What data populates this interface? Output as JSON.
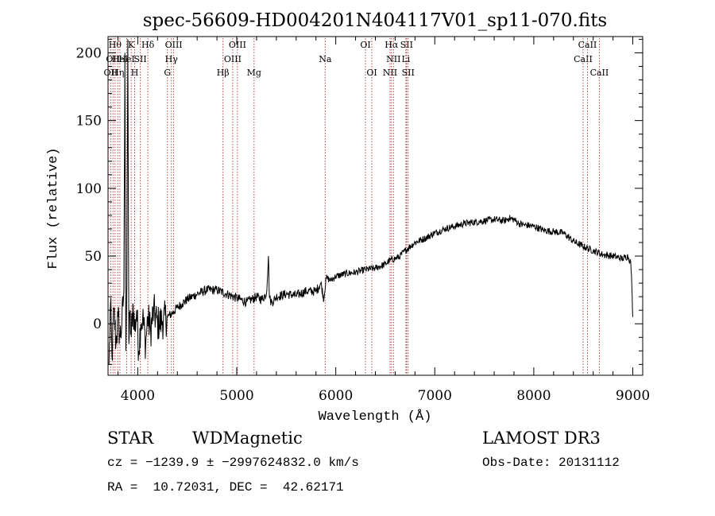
{
  "chart_data": {
    "type": "line",
    "title": "spec-56609-HD004201N404117V01_sp11-070.fits",
    "xlabel": "Wavelength (Å)",
    "ylabel": "Flux (relative)",
    "xlim": [
      3700,
      9100
    ],
    "ylim": [
      -38,
      212
    ],
    "xticks": [
      4000,
      5000,
      6000,
      7000,
      8000,
      9000
    ],
    "xtick_labels": [
      "4000",
      "5000",
      "6000",
      "7000",
      "8000",
      "9000"
    ],
    "yticks": [
      0,
      50,
      100,
      150,
      200
    ],
    "ytick_labels": [
      "0",
      "50",
      "100",
      "150",
      "200"
    ],
    "grid": false,
    "line_color": "#000000",
    "marker_color": "#b03030",
    "series": [
      {
        "name": "flux",
        "x": [
          3710,
          3725,
          3740,
          3760,
          3780,
          3800,
          3820,
          3840,
          3860,
          3870,
          3880,
          3890,
          3900,
          3910,
          3920,
          3935,
          3950,
          3970,
          3990,
          4010,
          4030,
          4050,
          4080,
          4100,
          4130,
          4160,
          4200,
          4250,
          4300,
          4350,
          4400,
          4450,
          4500,
          4600,
          4700,
          4800,
          4900,
          5000,
          5100,
          5200,
          5250,
          5300,
          5320,
          5330,
          5340,
          5360,
          5400,
          5500,
          5600,
          5700,
          5800,
          5850,
          5880,
          5900,
          5950,
          6000,
          6100,
          6200,
          6300,
          6400,
          6500,
          6550,
          6600,
          6650,
          6700,
          6800,
          6900,
          7000,
          7100,
          7200,
          7300,
          7400,
          7500,
          7600,
          7700,
          7750,
          7800,
          7850,
          7900,
          8000,
          8100,
          8200,
          8300,
          8400,
          8500,
          8600,
          8700,
          8800,
          8900,
          8950,
          8980,
          8990,
          9000
        ],
        "values": [
          -30,
          15,
          -25,
          10,
          -15,
          5,
          -10,
          0,
          25,
          200,
          -20,
          30,
          210,
          -15,
          5,
          -10,
          15,
          -5,
          10,
          -20,
          0,
          5,
          -15,
          5,
          -5,
          10,
          0,
          2,
          5,
          8,
          12,
          15,
          18,
          22,
          25,
          25,
          22,
          19,
          16,
          20,
          18,
          22,
          50,
          20,
          17,
          16,
          20,
          22,
          21,
          24,
          24,
          30,
          18,
          34,
          32,
          35,
          37,
          38,
          40,
          41,
          44,
          47,
          48,
          50,
          54,
          60,
          63,
          67,
          70,
          72,
          74,
          75,
          76,
          77,
          76,
          78,
          77,
          74,
          73,
          72,
          69,
          68,
          67,
          61,
          57,
          54,
          51,
          50,
          48,
          50,
          45,
          28,
          5
        ]
      }
    ],
    "line_markers": [
      {
        "wavelength": 3727,
        "label": "OII",
        "row": 2
      },
      {
        "wavelength": 3750,
        "label": "OII",
        "row": 1
      },
      {
        "wavelength": 3771,
        "label": "Hθ",
        "row": 0
      },
      {
        "wavelength": 3798,
        "label": "Hη",
        "row": 2
      },
      {
        "wavelength": 3820,
        "label": "HeI",
        "row": 1
      },
      {
        "wavelength": 3889,
        "label": "HeI",
        "row": 1
      },
      {
        "wavelength": 3934,
        "label": "K",
        "row": 0
      },
      {
        "wavelength": 3969,
        "label": "H",
        "row": 2
      },
      {
        "wavelength": 4026,
        "label": "SII",
        "row": 1
      },
      {
        "wavelength": 4102,
        "label": "Hδ",
        "row": 0
      },
      {
        "wavelength": 4300,
        "label": "G",
        "row": 2
      },
      {
        "wavelength": 4340,
        "label": "Hγ",
        "row": 1
      },
      {
        "wavelength": 4363,
        "label": "OIII",
        "row": 0
      },
      {
        "wavelength": 4861,
        "label": "Hβ",
        "row": 2
      },
      {
        "wavelength": 4959,
        "label": "OIII",
        "row": 1
      },
      {
        "wavelength": 5007,
        "label": "OIII",
        "row": 0
      },
      {
        "wavelength": 5175,
        "label": "Mg",
        "row": 2
      },
      {
        "wavelength": 5893,
        "label": "Na",
        "row": 1
      },
      {
        "wavelength": 6300,
        "label": "OI",
        "row": 0
      },
      {
        "wavelength": 6364,
        "label": "OI",
        "row": 2
      },
      {
        "wavelength": 6548,
        "label": "NII",
        "row": 2
      },
      {
        "wavelength": 6563,
        "label": "Hα",
        "row": 0
      },
      {
        "wavelength": 6583,
        "label": "NII",
        "row": 1
      },
      {
        "wavelength": 6708,
        "label": "Li",
        "row": 1
      },
      {
        "wavelength": 6716,
        "label": "SII",
        "row": 0
      },
      {
        "wavelength": 6731,
        "label": "SII",
        "row": 2
      },
      {
        "wavelength": 8498,
        "label": "CaII",
        "row": 1
      },
      {
        "wavelength": 8542,
        "label": "CaII",
        "row": 0
      },
      {
        "wavelength": 8662,
        "label": "CaII",
        "row": 2
      }
    ]
  },
  "info": {
    "object_class": "STAR",
    "subclass": "WDMagnetic",
    "survey": "LAMOST DR3",
    "cz": "cz = −1239.9 ± −2997624832.0 km/s",
    "obs_date": "Obs-Date: 20131112",
    "coords": "RA =  10.72031, DEC =  42.62171"
  }
}
